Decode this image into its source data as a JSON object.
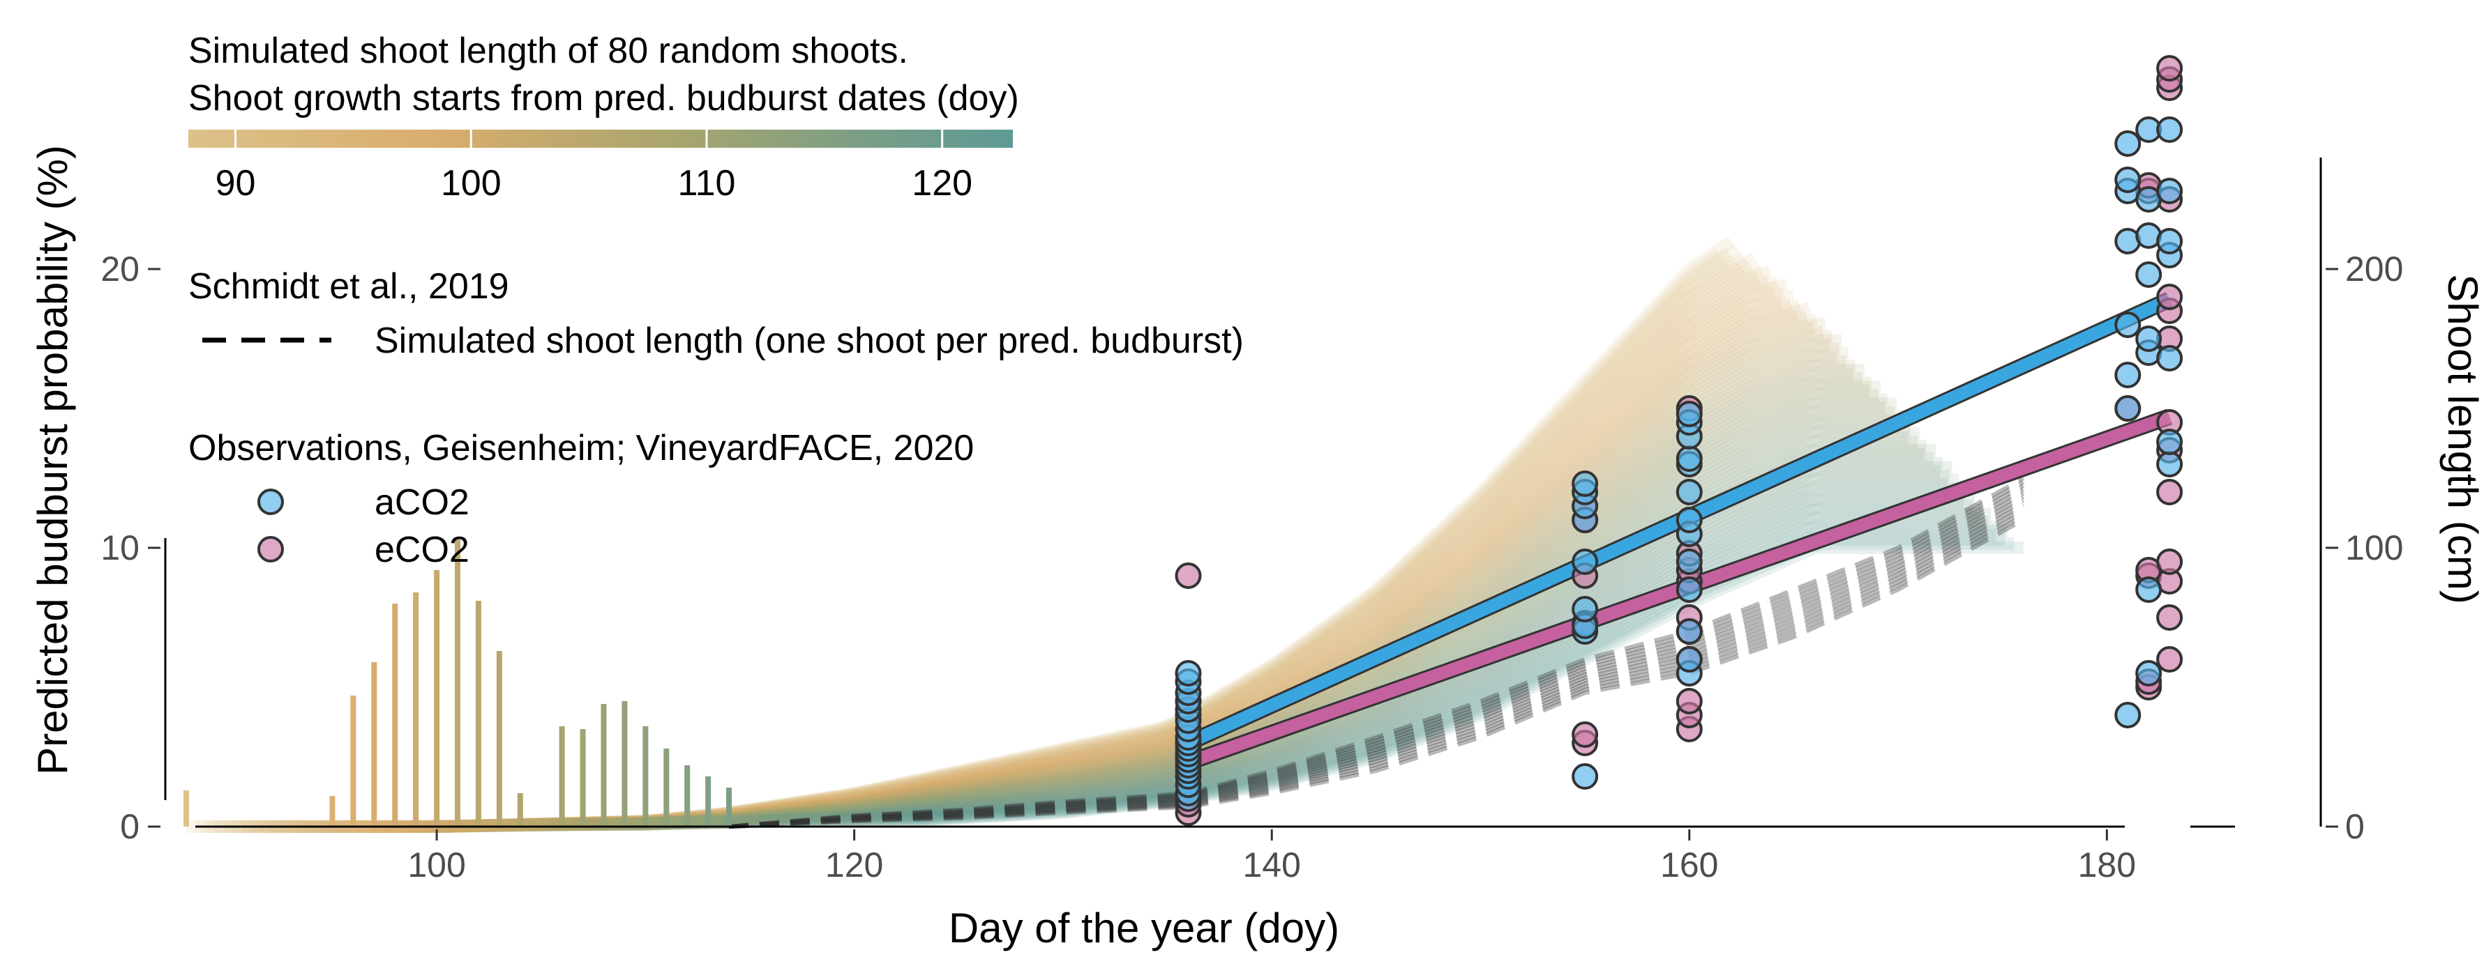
{
  "colors": {
    "aCO2": "#56B4E9",
    "eCO2": "#CC79A7",
    "aCO2_line": "#3aa6e0",
    "eCO2_line": "#c4619e",
    "marker_edge": "#333333",
    "gradient": [
      "#dcc189",
      "#d9ad6d",
      "#a7a56e",
      "#7a9e86",
      "#5e9a96"
    ],
    "dashed": "#333333"
  },
  "legend": {
    "gradient_title_line1": "Simulated shoot length of 80 random shoots.",
    "gradient_title_line2": "Shoot growth starts from pred. budburst dates (doy)",
    "gradient_ticks": [
      {
        "value": 90,
        "label": "90"
      },
      {
        "value": 100,
        "label": "100"
      },
      {
        "value": 110,
        "label": "110"
      },
      {
        "value": 120,
        "label": "120"
      }
    ],
    "gradient_range": [
      88,
      123
    ],
    "schmidt_title": "Schmidt et al., 2019",
    "schmidt_entry": "Simulated shoot length (one shoot per pred. budburst)",
    "obs_title": "Observations, Geisenheim; VineyardFACE, 2020",
    "obs_entries": [
      {
        "label": "aCO2",
        "color_key": "aCO2"
      },
      {
        "label": "eCO2",
        "color_key": "eCO2"
      }
    ]
  },
  "chart_data": {
    "type": "bar+line+scatter",
    "xlabel": "Day of the year (doy)",
    "ylabel_left": "Predicted budburst probability (%)",
    "ylabel_right": "Shoot length (cm)",
    "xlim": [
      87,
      185
    ],
    "ylim_left": [
      0,
      24
    ],
    "ylim_right": [
      0,
      240
    ],
    "x_ticks": [
      100,
      120,
      140,
      160,
      180
    ],
    "y_left_ticks": [
      0,
      10,
      20
    ],
    "y_right_ticks": [
      0,
      100,
      200
    ],
    "grid": false,
    "budburst_probability": {
      "doy": [
        88,
        95,
        96,
        97,
        98,
        99,
        100,
        101,
        102,
        103,
        104,
        106,
        107,
        108,
        109,
        110,
        111,
        112,
        113,
        114
      ],
      "values": [
        1.3,
        1.1,
        4.7,
        5.9,
        8.0,
        8.4,
        9.2,
        10.3,
        8.1,
        6.3,
        1.2,
        3.6,
        3.5,
        4.4,
        4.5,
        3.6,
        2.8,
        2.2,
        1.8,
        1.4
      ]
    },
    "simulated_envelope": {
      "doy": [
        88,
        100,
        110,
        114,
        120,
        125,
        130,
        135,
        140,
        145,
        150,
        155,
        160,
        163,
        166
      ],
      "upper": [
        0,
        0,
        2,
        5,
        12,
        20,
        28,
        36,
        58,
        85,
        120,
        160,
        200,
        215,
        220
      ],
      "lower": [
        0,
        0,
        0,
        0,
        1,
        3,
        5,
        9,
        15,
        25,
        40,
        60,
        80,
        90,
        100
      ]
    },
    "schmidt_series": {
      "doy": [
        114,
        120,
        125,
        130,
        136,
        140,
        145,
        150,
        155,
        160,
        165,
        170,
        176
      ],
      "lower": [
        0,
        2,
        3,
        5,
        7,
        12,
        20,
        32,
        48,
        55,
        68,
        85,
        110
      ],
      "upper": [
        0,
        4,
        6,
        9,
        12,
        20,
        32,
        45,
        60,
        70,
        85,
        100,
        125
      ]
    },
    "regression": {
      "aCO2": {
        "x": [
          136,
          183
        ],
        "y": [
          30,
          189
        ]
      },
      "eCO2": {
        "x": [
          136,
          183
        ],
        "y": [
          23,
          147
        ]
      }
    },
    "observations": {
      "aCO2": [
        {
          "x": 136,
          "y": [
            10,
            12,
            15,
            18,
            20,
            22,
            24,
            26,
            28,
            30,
            32,
            35,
            38,
            42,
            45,
            48,
            52,
            55
          ]
        },
        {
          "x": 155,
          "y": [
            18,
            70,
            72,
            78,
            95,
            110,
            115,
            120,
            123
          ]
        },
        {
          "x": 160,
          "y": [
            55,
            60,
            70,
            85,
            95,
            105,
            110,
            120,
            130,
            132,
            140,
            145,
            148
          ]
        },
        {
          "x": 181,
          "y": [
            40,
            150,
            162,
            180,
            210,
            228,
            232,
            245
          ]
        },
        {
          "x": 182,
          "y": [
            55,
            85,
            170,
            175,
            198,
            212,
            225,
            250
          ]
        },
        {
          "x": 183,
          "y": [
            130,
            138,
            168,
            205,
            210,
            228,
            250
          ]
        }
      ],
      "eCO2": [
        {
          "x": 136,
          "y": [
            5,
            8,
            25,
            30,
            40,
            45,
            90
          ]
        },
        {
          "x": 155,
          "y": [
            30,
            33,
            73,
            90,
            110,
            115
          ]
        },
        {
          "x": 160,
          "y": [
            35,
            40,
            45,
            60,
            70,
            75,
            88,
            92,
            98,
            150
          ]
        },
        {
          "x": 181,
          "y": [
            150
          ]
        },
        {
          "x": 182,
          "y": [
            50,
            52,
            90,
            92,
            228,
            230
          ]
        },
        {
          "x": 183,
          "y": [
            60,
            75,
            88,
            95,
            120,
            135,
            145,
            175,
            185,
            190,
            225,
            265,
            268,
            272
          ]
        }
      ]
    }
  }
}
